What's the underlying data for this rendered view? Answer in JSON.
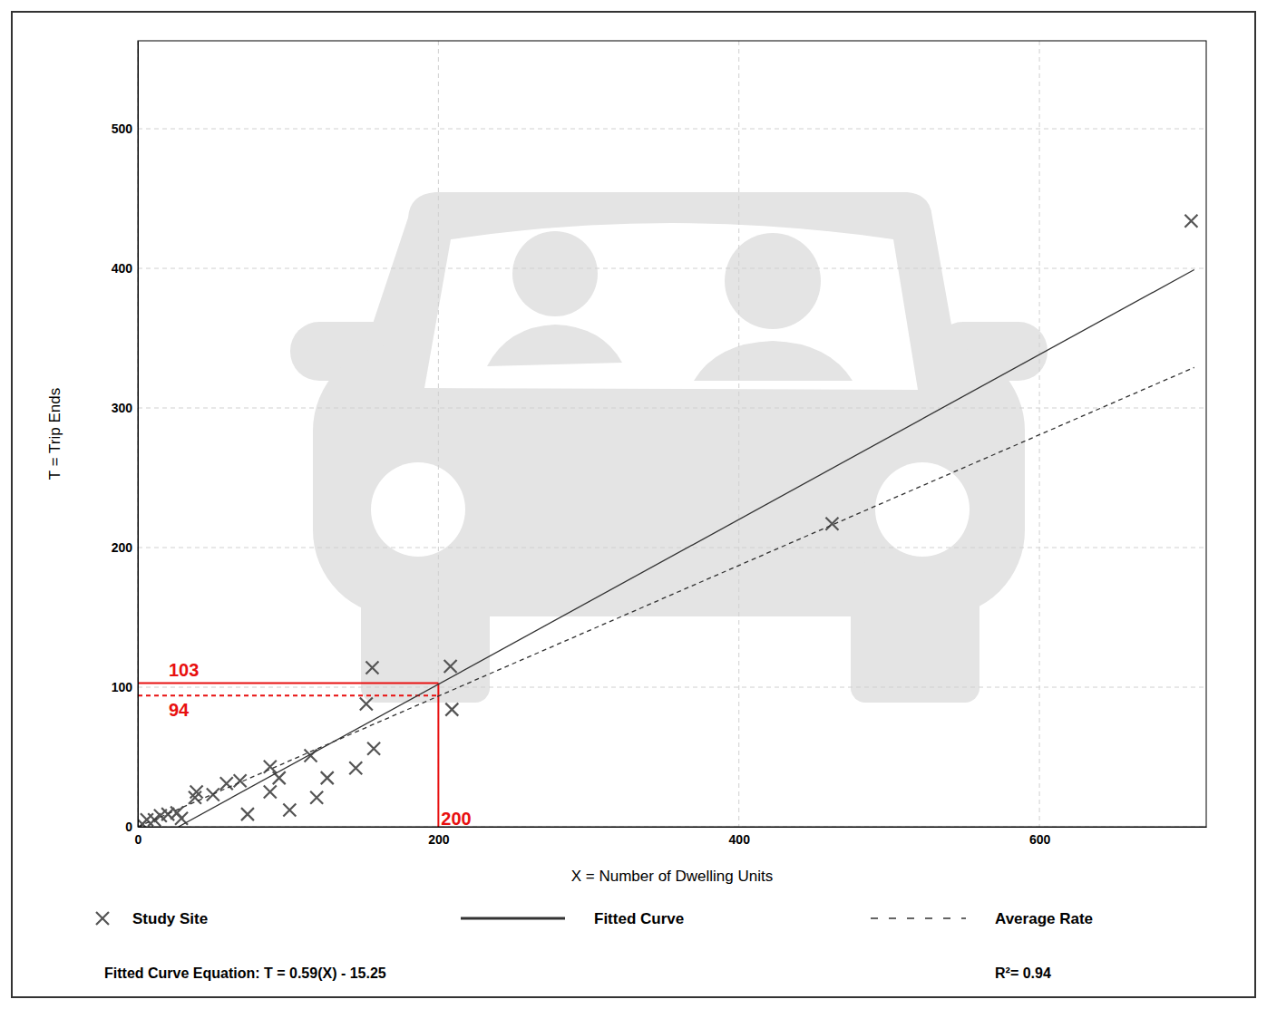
{
  "chart_data": {
    "type": "scatter",
    "x_label": "X = Number of Dwelling Units",
    "y_label": "T = Trip Ends",
    "xlim": [
      0,
      711
    ],
    "ylim": [
      0,
      563
    ],
    "xticks": [
      0,
      200,
      400,
      600
    ],
    "yticks": [
      0,
      100,
      200,
      300,
      400,
      500
    ],
    "grid": true,
    "legend": "bottom",
    "series": [
      {
        "name": "Study Site",
        "type": "scatter",
        "marker": "x",
        "color": "#555555",
        "x": [
          3,
          6,
          11,
          15,
          20,
          26,
          29,
          38,
          39,
          50,
          59,
          68,
          73,
          88,
          88,
          94,
          101,
          115,
          119,
          126,
          145,
          152,
          156,
          157,
          208,
          209,
          462,
          701
        ],
        "values": [
          2,
          5,
          5,
          8,
          9,
          10,
          6,
          21,
          25,
          23,
          31,
          33,
          9,
          43,
          25,
          35,
          12,
          51,
          21,
          35,
          42,
          88,
          114,
          56,
          115,
          84,
          217,
          434
        ]
      },
      {
        "name": "Fitted Curve",
        "type": "line",
        "line_style": "solid",
        "color": "#333333",
        "x": [
          27,
          703
        ],
        "values": [
          0,
          399
        ]
      },
      {
        "name": "Average Rate",
        "type": "line",
        "line_style": "dashed",
        "color": "#333333",
        "x": [
          0,
          703
        ],
        "values": [
          0,
          329
        ]
      }
    ],
    "reference_lines": [
      {
        "x": 200,
        "y": 103,
        "line_style": "solid",
        "color": "#e81010"
      },
      {
        "x": 200,
        "y": 94,
        "line_style": "dashed",
        "color": "#e81010"
      }
    ],
    "equation": "Fitted Curve Equation: T = 0.59(X) - 15.25",
    "r_squared": "R²= 0.94"
  }
}
